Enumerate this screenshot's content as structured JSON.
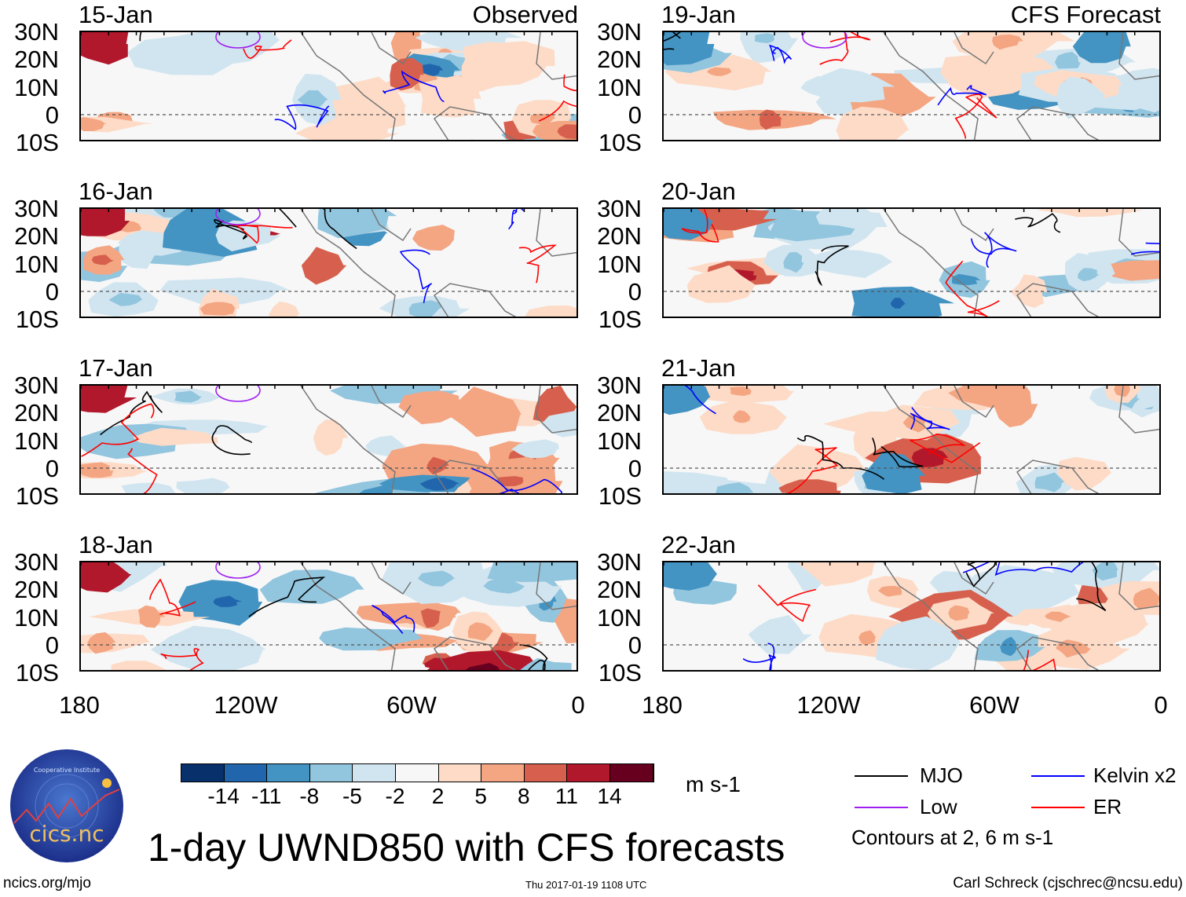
{
  "figure": {
    "title": "1-day UWND850 with CFS forecasts",
    "website": "ncics.org/mjo",
    "timestamp": "Thu 2017-01-19 1108 UTC",
    "author": "Carl Schreck (cjschrec@ncsu.edu)",
    "logo_text": "cics.nc",
    "logo_ring_text": "Cooperative Institute for Climate and Satellites"
  },
  "columns": {
    "left_label": "Observed",
    "right_label": "CFS Forecast"
  },
  "panels_left": [
    {
      "date": "15-Jan"
    },
    {
      "date": "16-Jan"
    },
    {
      "date": "17-Jan"
    },
    {
      "date": "18-Jan"
    }
  ],
  "panels_right": [
    {
      "date": "19-Jan"
    },
    {
      "date": "20-Jan"
    },
    {
      "date": "21-Jan"
    },
    {
      "date": "22-Jan"
    }
  ],
  "lat_labels": [
    "30N",
    "20N",
    "10N",
    "0",
    "10S"
  ],
  "lon_labels": [
    "180",
    "120W",
    "60W",
    "0"
  ],
  "colorbar": {
    "units": "m s-1",
    "labels": [
      "-14",
      "-11",
      "-8",
      "-5",
      "-2",
      "2",
      "5",
      "8",
      "11",
      "14"
    ],
    "colors": [
      "#08306b",
      "#2166ac",
      "#4393c3",
      "#92c5de",
      "#d1e5f0",
      "#f7f7f7",
      "#fddbc7",
      "#f4a582",
      "#d6604d",
      "#b2182b",
      "#67001f"
    ]
  },
  "legend": {
    "items": [
      {
        "label": "MJO",
        "color": "#000000"
      },
      {
        "label": "Kelvin x2",
        "color": "#0000ff"
      },
      {
        "label": "Low",
        "color": "#a020f0"
      },
      {
        "label": "ER",
        "color": "#ff0000"
      }
    ],
    "note": "Contours at 2, 6 m s-1"
  }
}
